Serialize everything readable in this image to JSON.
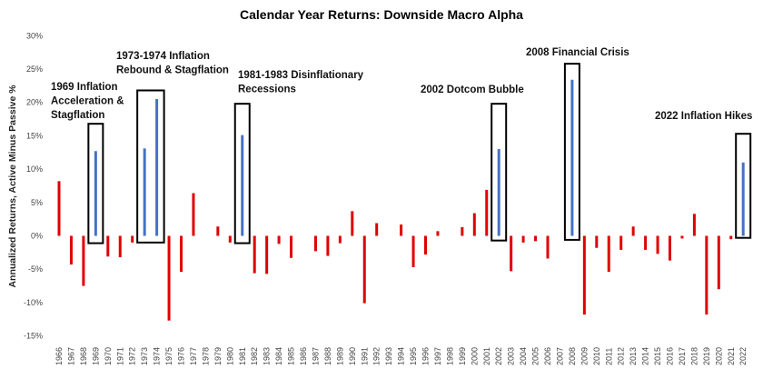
{
  "chart_data": {
    "type": "bar",
    "title": "Calendar Year Returns: Downside Macro Alpha",
    "ylabel": "Annualized Returns, Active Minus Passive %",
    "xlabel": "",
    "ylim": [
      -15,
      30
    ],
    "yticks": [
      "-15%",
      "-10%",
      "-5%",
      "0%",
      "5%",
      "10%",
      "15%",
      "20%",
      "25%",
      "30%"
    ],
    "ytick_values": [
      -15,
      -10,
      -5,
      0,
      5,
      10,
      15,
      20,
      25,
      30
    ],
    "grid": false,
    "colors": {
      "default": "#e00000",
      "highlight": "#4472c4",
      "box": "#000000"
    },
    "categories": [
      "1966",
      "1967",
      "1968",
      "1969",
      "1970",
      "1971",
      "1972",
      "1973",
      "1974",
      "1975",
      "1976",
      "1977",
      "1978",
      "1979",
      "1980",
      "1981",
      "1982",
      "1983",
      "1984",
      "1985",
      "1986",
      "1987",
      "1988",
      "1989",
      "1990",
      "1991",
      "1992",
      "1993",
      "1994",
      "1995",
      "1996",
      "1997",
      "1998",
      "1999",
      "2000",
      "2001",
      "2002",
      "2003",
      "2004",
      "2005",
      "2006",
      "2007",
      "2008",
      "2009",
      "2010",
      "2011",
      "2012",
      "2013",
      "2014",
      "2015",
      "2016",
      "2017",
      "2018",
      "2019",
      "2020",
      "2021",
      "2022"
    ],
    "series": [
      {
        "values": [
          8.2,
          -4.3,
          -7.5,
          12.7,
          -3.1,
          -3.2,
          -1.0,
          13.1,
          20.5,
          -12.7,
          -5.4,
          6.4,
          0.0,
          1.4,
          -1.0,
          15.1,
          -5.6,
          -5.7,
          -1.2,
          -3.3,
          0.0,
          -2.3,
          -3.0,
          -1.1,
          3.7,
          -10.1,
          1.9,
          0.0,
          1.7,
          -4.7,
          -2.8,
          0.7,
          0.0,
          1.3,
          3.4,
          6.9,
          13.0,
          -5.3,
          -1.0,
          -0.8,
          -3.4,
          0.0,
          23.4,
          -11.8,
          -1.8,
          -5.4,
          -2.1,
          1.4,
          -2.1,
          -2.7,
          -3.7,
          -0.4,
          3.3,
          -11.8,
          -8.0,
          -0.5,
          11.0
        ],
        "highlight": [
          3,
          7,
          8,
          15,
          36,
          42,
          56
        ]
      }
    ],
    "boxes": [
      {
        "from": "1969",
        "to": "1969",
        "top": 16.8,
        "bottom": -1.1
      },
      {
        "from": "1973",
        "to": "1974",
        "top": 21.8,
        "bottom": -1.0
      },
      {
        "from": "1981",
        "to": "1981",
        "top": 19.8,
        "bottom": -1.1
      },
      {
        "from": "2002",
        "to": "2002",
        "top": 19.8,
        "bottom": -0.7
      },
      {
        "from": "2008",
        "to": "2008",
        "top": 25.8,
        "bottom": -0.6
      },
      {
        "from": "2022",
        "to": "2022",
        "top": 15.3,
        "bottom": -0.3
      }
    ],
    "annotations": [
      {
        "lines": [
          "1969 Inflation",
          "Acceleration &",
          "Stagflation"
        ]
      },
      {
        "lines": [
          "1973-1974 Inflation",
          "Rebound & Stagflation"
        ]
      },
      {
        "lines": [
          "1981-1983 Disinflationary",
          "Recessions"
        ]
      },
      {
        "lines": [
          "2002 Dotcom Bubble"
        ]
      },
      {
        "lines": [
          "2008 Financial Crisis"
        ]
      },
      {
        "lines": [
          "2022 Inflation Hikes"
        ]
      }
    ]
  }
}
